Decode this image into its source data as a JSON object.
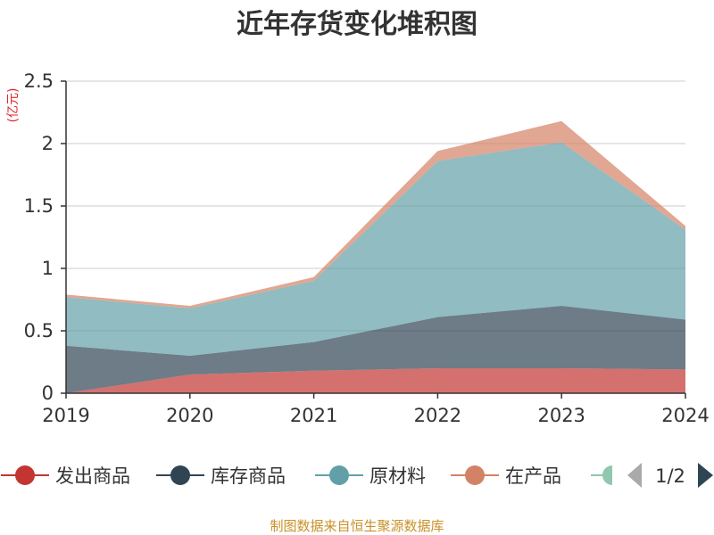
{
  "chart_data": {
    "type": "area",
    "stacked": true,
    "title": "近年存货变化堆积图",
    "ylabel": "(亿元)",
    "xlabel": "",
    "categories": [
      "2019",
      "2020",
      "2021",
      "2022",
      "2023",
      "2024"
    ],
    "ylim": [
      0,
      2.5
    ],
    "yticks": [
      "0",
      "0.5",
      "1",
      "1.5",
      "2",
      "2.5"
    ],
    "grid": true,
    "series": [
      {
        "name": "发出商品",
        "color": "#c23531",
        "values": [
          0.0,
          0.15,
          0.18,
          0.2,
          0.2,
          0.19
        ]
      },
      {
        "name": "库存商品",
        "color": "#2f4554",
        "values": [
          0.38,
          0.15,
          0.23,
          0.41,
          0.5,
          0.4
        ]
      },
      {
        "name": "原材料",
        "color": "#61a0a8",
        "values": [
          0.39,
          0.38,
          0.49,
          1.25,
          1.31,
          0.72
        ]
      },
      {
        "name": "在产品",
        "color": "#d48265",
        "values": [
          0.02,
          0.02,
          0.03,
          0.08,
          0.17,
          0.03
        ]
      }
    ],
    "legend": {
      "position": "bottom",
      "page": "1/2",
      "extra_item_color": "#91c7ae"
    }
  },
  "source_text": "制图数据来自恒生聚源数据库"
}
